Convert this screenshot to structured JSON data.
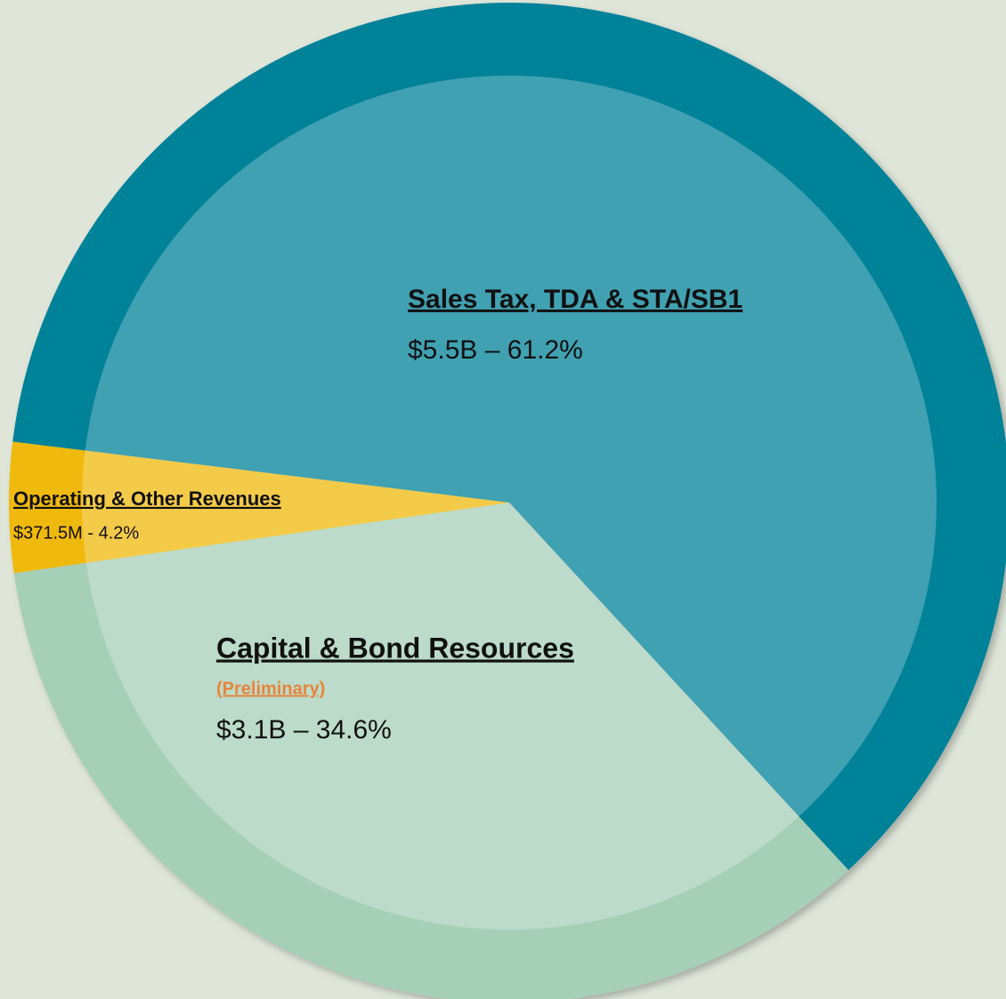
{
  "chart_data": {
    "type": "pie",
    "categories": [
      "Sales Tax, TDA & STA/SB1",
      "Capital & Bond Resources",
      "Operating & Other Revenues"
    ],
    "values": [
      61.2,
      34.6,
      4.2
    ],
    "value_labels": [
      "$5.5B – 61.2%",
      "$3.1B – 34.6%",
      "$371.5M - 4.2%"
    ],
    "colors": [
      "#008299",
      "#a6cfb8",
      "#f0b90b"
    ],
    "annotations": [
      "(Preliminary)"
    ]
  }
}
